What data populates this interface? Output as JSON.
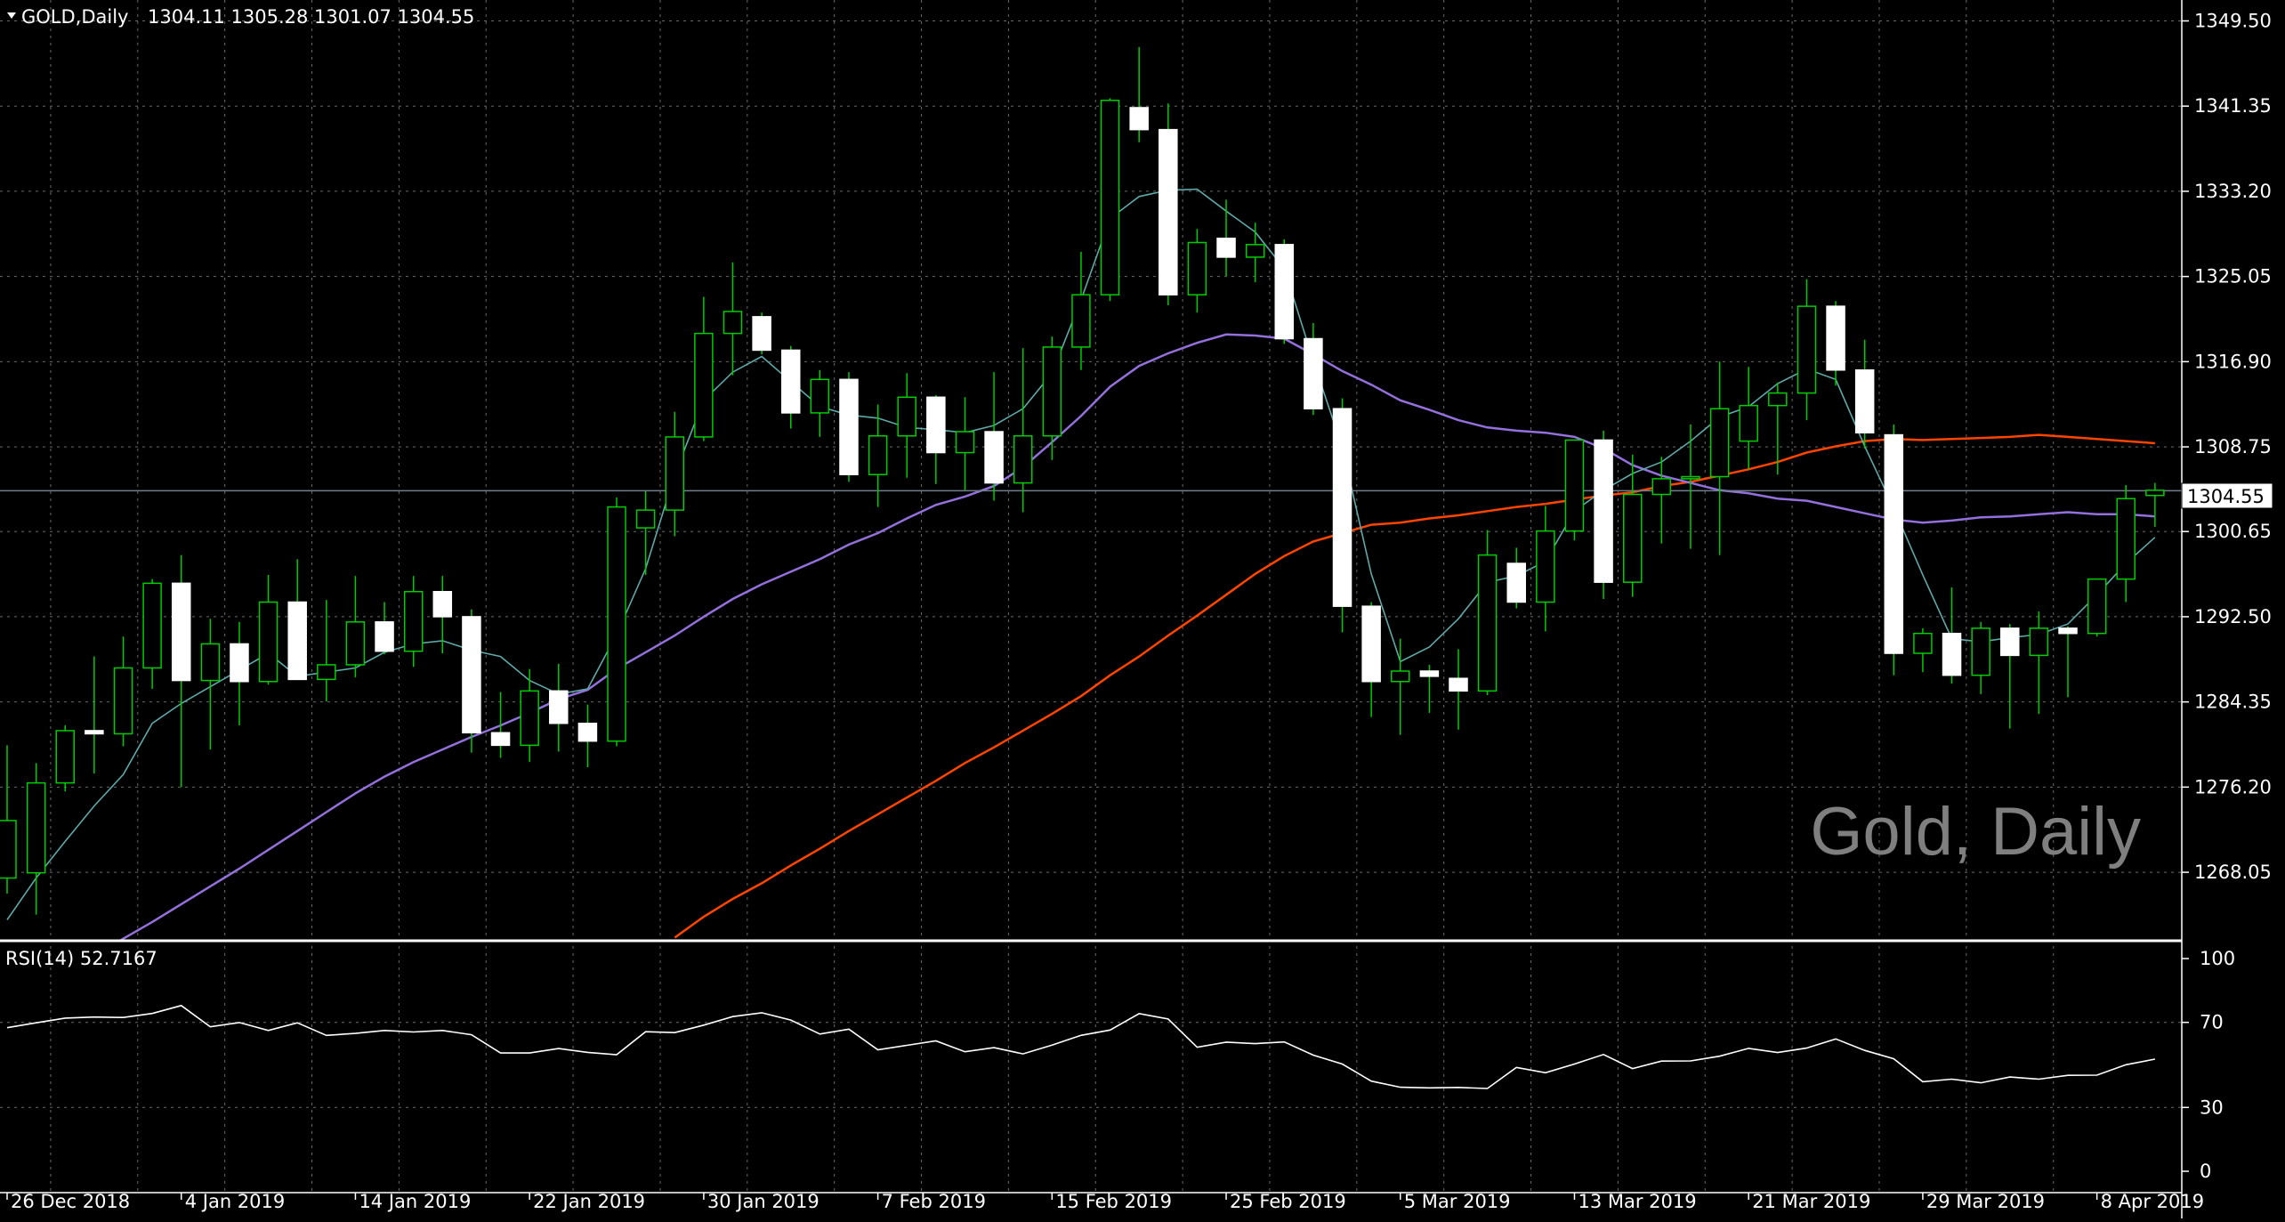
{
  "chart_data": {
    "type": "candlestick",
    "symbol_header": "GOLD,Daily",
    "ohlc_header": "1304.11 1305.28 1301.07 1304.55",
    "watermark": "Gold, Daily",
    "current_price_label": "1304.55",
    "current_price": 1304.55,
    "ylim": [
      1261.5,
      1351.5
    ],
    "y_ticks": [
      "1349.50",
      "1341.35",
      "1333.20",
      "1325.05",
      "1316.90",
      "1308.75",
      "1300.65",
      "1292.50",
      "1284.35",
      "1276.20",
      "1268.05"
    ],
    "x_labels": [
      "26 Dec 2018",
      "4 Jan 2019",
      "14 Jan 2019",
      "22 Jan 2019",
      "30 Jan 2019",
      "7 Feb 2019",
      "15 Feb 2019",
      "25 Feb 2019",
      "5 Mar 2019",
      "13 Mar 2019",
      "21 Mar 2019",
      "29 Mar 2019",
      "8 Apr 2019"
    ],
    "x_label_bar_index": [
      0,
      6,
      12,
      18,
      24,
      30,
      36,
      42,
      48,
      54,
      60,
      66,
      72
    ],
    "colors": {
      "background": "#000000",
      "grid": "#c0c0c0",
      "bull_body": "#000000",
      "bull_outline": "#00cc00",
      "bear_body": "#ffffff",
      "bear_outline": "#ffffff",
      "wick": "#00cc00",
      "ma_fast": "#5fa8a8",
      "ma_mid": "#9370db",
      "ma_slow": "#ff4500",
      "rsi": "#ffffff",
      "price_line": "#708090"
    },
    "candles": [
      {
        "o": 1267.5,
        "h": 1280.2,
        "l": 1266.0,
        "c": 1273.0
      },
      {
        "o": 1268.0,
        "h": 1278.5,
        "l": 1264.0,
        "c": 1276.6
      },
      {
        "o": 1276.6,
        "h": 1282.1,
        "l": 1275.8,
        "c": 1281.6
      },
      {
        "o": 1281.6,
        "h": 1288.7,
        "l": 1277.5,
        "c": 1281.3
      },
      {
        "o": 1281.3,
        "h": 1290.6,
        "l": 1280.1,
        "c": 1287.6
      },
      {
        "o": 1287.6,
        "h": 1296.1,
        "l": 1285.6,
        "c": 1295.7
      },
      {
        "o": 1295.7,
        "h": 1298.4,
        "l": 1276.2,
        "c": 1286.4
      },
      {
        "o": 1286.4,
        "h": 1292.3,
        "l": 1279.8,
        "c": 1289.9
      },
      {
        "o": 1289.9,
        "h": 1292.0,
        "l": 1282.1,
        "c": 1286.3
      },
      {
        "o": 1286.3,
        "h": 1296.5,
        "l": 1286.0,
        "c": 1293.9
      },
      {
        "o": 1293.9,
        "h": 1298.0,
        "l": 1286.7,
        "c": 1286.5
      },
      {
        "o": 1286.5,
        "h": 1294.1,
        "l": 1284.4,
        "c": 1287.9
      },
      {
        "o": 1287.9,
        "h": 1296.4,
        "l": 1286.7,
        "c": 1292.0
      },
      {
        "o": 1292.0,
        "h": 1293.9,
        "l": 1288.9,
        "c": 1289.2
      },
      {
        "o": 1289.2,
        "h": 1296.4,
        "l": 1287.7,
        "c": 1294.9
      },
      {
        "o": 1294.9,
        "h": 1296.4,
        "l": 1289.0,
        "c": 1292.5
      },
      {
        "o": 1292.5,
        "h": 1293.2,
        "l": 1279.5,
        "c": 1281.4
      },
      {
        "o": 1281.4,
        "h": 1285.3,
        "l": 1279.0,
        "c": 1280.2
      },
      {
        "o": 1280.2,
        "h": 1287.5,
        "l": 1278.6,
        "c": 1285.4
      },
      {
        "o": 1285.4,
        "h": 1288.0,
        "l": 1279.6,
        "c": 1282.3
      },
      {
        "o": 1282.3,
        "h": 1284.1,
        "l": 1278.1,
        "c": 1280.6
      },
      {
        "o": 1280.6,
        "h": 1303.9,
        "l": 1280.1,
        "c": 1303.0
      },
      {
        "o": 1301.0,
        "h": 1304.5,
        "l": 1296.5,
        "c": 1302.7
      },
      {
        "o": 1302.7,
        "h": 1312.1,
        "l": 1300.2,
        "c": 1309.7
      },
      {
        "o": 1309.7,
        "h": 1323.1,
        "l": 1309.3,
        "c": 1319.6
      },
      {
        "o": 1319.6,
        "h": 1326.4,
        "l": 1315.6,
        "c": 1321.7
      },
      {
        "o": 1321.2,
        "h": 1321.6,
        "l": 1317.6,
        "c": 1318.0
      },
      {
        "o": 1318.0,
        "h": 1318.4,
        "l": 1310.5,
        "c": 1312.0
      },
      {
        "o": 1312.0,
        "h": 1316.1,
        "l": 1309.7,
        "c": 1315.2
      },
      {
        "o": 1315.2,
        "h": 1315.9,
        "l": 1305.4,
        "c": 1306.1
      },
      {
        "o": 1306.1,
        "h": 1312.8,
        "l": 1303.0,
        "c": 1309.8
      },
      {
        "o": 1309.8,
        "h": 1315.8,
        "l": 1305.8,
        "c": 1313.5
      },
      {
        "o": 1313.5,
        "h": 1313.7,
        "l": 1305.2,
        "c": 1308.2
      },
      {
        "o": 1308.2,
        "h": 1313.5,
        "l": 1304.6,
        "c": 1310.2
      },
      {
        "o": 1310.2,
        "h": 1315.9,
        "l": 1303.6,
        "c": 1305.3
      },
      {
        "o": 1305.3,
        "h": 1318.2,
        "l": 1302.5,
        "c": 1309.8
      },
      {
        "o": 1309.8,
        "h": 1319.3,
        "l": 1307.5,
        "c": 1318.3
      },
      {
        "o": 1318.3,
        "h": 1327.4,
        "l": 1316.1,
        "c": 1323.3
      },
      {
        "o": 1323.3,
        "h": 1342.1,
        "l": 1322.7,
        "c": 1341.9
      },
      {
        "o": 1341.2,
        "h": 1347.0,
        "l": 1337.9,
        "c": 1339.1
      },
      {
        "o": 1339.1,
        "h": 1341.6,
        "l": 1322.3,
        "c": 1323.3
      },
      {
        "o": 1323.3,
        "h": 1329.6,
        "l": 1321.6,
        "c": 1328.3
      },
      {
        "o": 1328.7,
        "h": 1332.4,
        "l": 1325.1,
        "c": 1326.9
      },
      {
        "o": 1326.9,
        "h": 1330.2,
        "l": 1324.5,
        "c": 1328.1
      },
      {
        "o": 1328.1,
        "h": 1328.6,
        "l": 1318.6,
        "c": 1319.1
      },
      {
        "o": 1319.1,
        "h": 1320.6,
        "l": 1311.8,
        "c": 1312.4
      },
      {
        "o": 1312.4,
        "h": 1313.4,
        "l": 1291.0,
        "c": 1293.5
      },
      {
        "o": 1293.5,
        "h": 1293.9,
        "l": 1282.9,
        "c": 1286.3
      },
      {
        "o": 1286.3,
        "h": 1290.4,
        "l": 1281.2,
        "c": 1287.3
      },
      {
        "o": 1287.3,
        "h": 1287.9,
        "l": 1283.3,
        "c": 1286.8
      },
      {
        "o": 1286.6,
        "h": 1289.4,
        "l": 1281.7,
        "c": 1285.4
      },
      {
        "o": 1285.4,
        "h": 1300.8,
        "l": 1285.0,
        "c": 1298.4
      },
      {
        "o": 1297.6,
        "h": 1299.1,
        "l": 1293.3,
        "c": 1293.9
      },
      {
        "o": 1293.9,
        "h": 1303.1,
        "l": 1291.1,
        "c": 1300.7
      },
      {
        "o": 1300.7,
        "h": 1309.4,
        "l": 1299.8,
        "c": 1309.4
      },
      {
        "o": 1309.4,
        "h": 1310.3,
        "l": 1294.2,
        "c": 1295.8
      },
      {
        "o": 1295.8,
        "h": 1308.0,
        "l": 1294.4,
        "c": 1304.2
      },
      {
        "o": 1304.2,
        "h": 1307.8,
        "l": 1299.5,
        "c": 1305.7
      },
      {
        "o": 1305.7,
        "h": 1310.9,
        "l": 1299.0,
        "c": 1305.9
      },
      {
        "o": 1305.9,
        "h": 1316.9,
        "l": 1298.4,
        "c": 1312.4
      },
      {
        "o": 1309.3,
        "h": 1316.4,
        "l": 1306.6,
        "c": 1312.7
      },
      {
        "o": 1312.7,
        "h": 1314.9,
        "l": 1306.1,
        "c": 1313.9
      },
      {
        "o": 1313.9,
        "h": 1324.8,
        "l": 1311.3,
        "c": 1322.2
      },
      {
        "o": 1322.2,
        "h": 1322.7,
        "l": 1314.6,
        "c": 1316.1
      },
      {
        "o": 1316.1,
        "h": 1319.0,
        "l": 1308.6,
        "c": 1310.1
      },
      {
        "o": 1309.9,
        "h": 1310.9,
        "l": 1286.9,
        "c": 1289.0
      },
      {
        "o": 1289.0,
        "h": 1291.4,
        "l": 1287.2,
        "c": 1290.9
      },
      {
        "o": 1290.9,
        "h": 1295.3,
        "l": 1286.1,
        "c": 1286.9
      },
      {
        "o": 1286.9,
        "h": 1292.0,
        "l": 1285.1,
        "c": 1291.4
      },
      {
        "o": 1291.4,
        "h": 1291.8,
        "l": 1281.8,
        "c": 1288.8
      },
      {
        "o": 1288.8,
        "h": 1293.0,
        "l": 1283.2,
        "c": 1291.4
      },
      {
        "o": 1291.4,
        "h": 1291.6,
        "l": 1284.8,
        "c": 1290.9
      },
      {
        "o": 1290.9,
        "h": 1296.1,
        "l": 1290.6,
        "c": 1296.1
      },
      {
        "o": 1296.1,
        "h": 1305.1,
        "l": 1293.9,
        "c": 1303.8
      },
      {
        "o": 1304.1,
        "h": 1305.3,
        "l": 1301.1,
        "c": 1304.6
      }
    ],
    "ma_fast": [
      1263.5,
      1267.5,
      1271.0,
      1274.4,
      1277.4,
      1282.3,
      1284.2,
      1285.8,
      1287.4,
      1289.0,
      1286.8,
      1287.2,
      1287.6,
      1289.1,
      1289.9,
      1290.2,
      1289.3,
      1288.7,
      1286.4,
      1285.1,
      1285.6,
      1290.8,
      1297.1,
      1306.1,
      1313.2,
      1315.9,
      1317.4,
      1315.0,
      1312.6,
      1311.8,
      1311.5,
      1310.6,
      1310.4,
      1310.1,
      1310.8,
      1312.4,
      1315.8,
      1322.8,
      1330.6,
      1332.7,
      1333.3,
      1333.4,
      1331.3,
      1329.3,
      1325.8,
      1317.0,
      1308.7,
      1296.6,
      1288.2,
      1289.6,
      1292.3,
      1295.8,
      1296.4,
      1297.8,
      1302.6,
      1304.6,
      1306.2,
      1307.3,
      1309.3,
      1311.6,
      1312.6,
      1314.8,
      1316.2,
      1315.2,
      1308.8,
      1302.9,
      1296.5,
      1290.4,
      1290.1,
      1290.5,
      1290.8,
      1291.8,
      1294.6,
      1297.6,
      1300.1
    ],
    "ma_mid": [
      1255.8,
      1257.2,
      1258.7,
      1260.0,
      1261.7,
      1263.3,
      1265.0,
      1266.7,
      1268.4,
      1270.2,
      1272.0,
      1273.8,
      1275.6,
      1277.2,
      1278.6,
      1279.8,
      1281.0,
      1282.1,
      1283.3,
      1284.6,
      1285.5,
      1287.5,
      1289.1,
      1290.7,
      1292.5,
      1294.2,
      1295.6,
      1296.8,
      1298.0,
      1299.4,
      1300.5,
      1301.9,
      1303.2,
      1304.0,
      1305.0,
      1306.8,
      1309.2,
      1311.7,
      1314.5,
      1316.5,
      1317.7,
      1318.7,
      1319.5,
      1319.4,
      1319.1,
      1317.6,
      1316.0,
      1314.7,
      1313.2,
      1312.3,
      1311.3,
      1310.6,
      1310.3,
      1310.1,
      1309.7,
      1308.6,
      1307.0,
      1306.0,
      1305.3,
      1304.6,
      1304.3,
      1303.8,
      1303.6,
      1303.0,
      1302.4,
      1301.8,
      1301.5,
      1301.7,
      1302.0,
      1302.1,
      1302.3,
      1302.5,
      1302.3,
      1302.3,
      1302.1
    ],
    "ma_slow": [
      null,
      null,
      null,
      null,
      null,
      null,
      null,
      null,
      null,
      null,
      null,
      null,
      null,
      null,
      null,
      null,
      null,
      null,
      null,
      null,
      null,
      null,
      null,
      1261.8,
      1263.8,
      1265.5,
      1267.0,
      1268.7,
      1270.3,
      1272.0,
      1273.6,
      1275.2,
      1276.8,
      1278.5,
      1280.0,
      1281.6,
      1283.2,
      1284.9,
      1286.9,
      1288.7,
      1290.7,
      1292.6,
      1294.6,
      1296.6,
      1298.3,
      1299.7,
      1300.5,
      1301.3,
      1301.5,
      1301.9,
      1302.2,
      1302.6,
      1303.0,
      1303.3,
      1303.7,
      1304.1,
      1304.4,
      1305.0,
      1305.4,
      1306.0,
      1306.6,
      1307.3,
      1308.2,
      1308.8,
      1309.3,
      1309.5,
      1309.4,
      1309.5,
      1309.6,
      1309.7,
      1309.9,
      1309.7,
      1309.5,
      1309.3,
      1309.1
    ],
    "rsi": {
      "label": "RSI(14) 52.7167",
      "ylim": [
        0,
        100
      ],
      "ticks": [
        "100",
        "70",
        "30",
        "0"
      ],
      "levels": [
        100,
        70,
        30,
        0
      ],
      "values": [
        67.5,
        69.8,
        72.0,
        72.5,
        72.3,
        74.2,
        77.9,
        67.9,
        69.9,
        66.2,
        69.8,
        63.9,
        64.8,
        66.2,
        65.5,
        66.2,
        64.2,
        55.6,
        55.6,
        57.7,
        55.9,
        54.8,
        65.6,
        65.2,
        68.7,
        72.7,
        74.5,
        71.1,
        64.5,
        66.8,
        57.1,
        59.2,
        61.3,
        56.2,
        58.1,
        55.2,
        59.3,
        63.9,
        66.4,
        74.1,
        71.6,
        58.3,
        60.7,
        60.0,
        60.8,
        54.6,
        50.4,
        42.4,
        39.5,
        39.2,
        39.4,
        38.9,
        48.8,
        46.3,
        50.4,
        54.9,
        48.3,
        51.8,
        51.9,
        54.1,
        57.8,
        55.8,
        57.9,
        62.2,
        56.8,
        52.9,
        42.1,
        43.3,
        41.6,
        44.3,
        43.3,
        45.1,
        45.2,
        50.1,
        52.7
      ]
    }
  }
}
